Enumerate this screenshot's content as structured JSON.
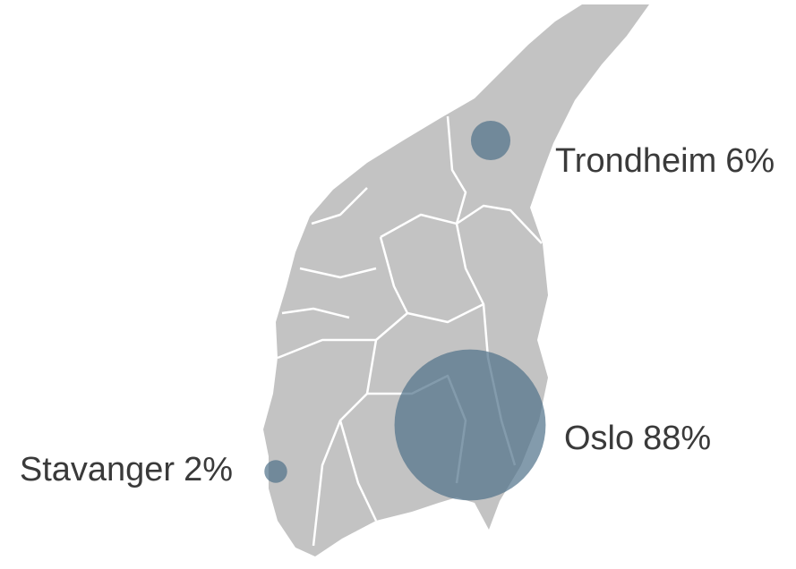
{
  "map": {
    "markers": [
      {
        "name": "Trondheim",
        "value": 6,
        "value_label": "6%"
      },
      {
        "name": "Oslo",
        "value": 88,
        "value_label": "88%"
      },
      {
        "name": "Stavanger",
        "value": 2,
        "value_label": "2%"
      }
    ]
  }
}
